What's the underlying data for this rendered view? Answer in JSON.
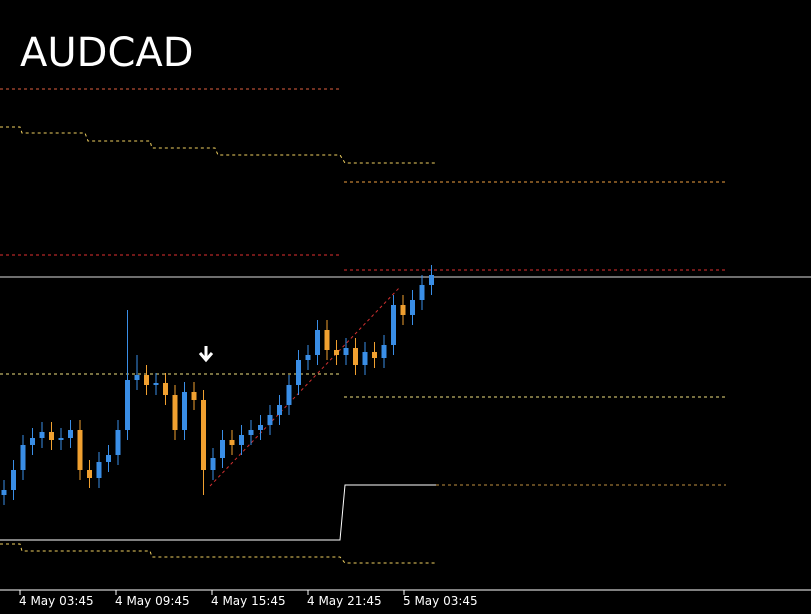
{
  "chart_data": {
    "type": "candlestick",
    "title": "AUDCAD",
    "xticks": [
      "4 May 03:45",
      "4 May 09:45",
      "4 May 15:45",
      "4 May 21:45",
      "5 May 03:45"
    ],
    "ylim": [
      0,
      590
    ],
    "up_color": "#3a8ee6",
    "down_color": "#f0a030",
    "open": [
      95,
      100,
      120,
      145,
      152,
      158,
      150,
      152,
      160,
      120,
      112,
      128,
      135,
      160,
      210,
      215,
      205,
      207,
      195,
      160,
      198,
      190,
      120,
      132,
      150,
      145,
      155,
      160,
      165,
      175,
      185,
      205,
      230,
      235,
      260,
      240,
      235,
      242,
      225,
      238,
      232,
      245,
      285,
      275,
      290,
      305
    ],
    "high": [
      110,
      130,
      155,
      162,
      168,
      168,
      162,
      170,
      170,
      130,
      138,
      145,
      170,
      280,
      235,
      225,
      217,
      217,
      205,
      208,
      208,
      200,
      142,
      160,
      160,
      165,
      170,
      175,
      185,
      195,
      215,
      240,
      245,
      270,
      270,
      250,
      252,
      252,
      248,
      248,
      255,
      295,
      295,
      300,
      315,
      325
    ],
    "low": [
      85,
      90,
      110,
      135,
      142,
      140,
      140,
      142,
      110,
      102,
      102,
      118,
      125,
      150,
      200,
      195,
      195,
      185,
      150,
      150,
      180,
      95,
      110,
      122,
      135,
      135,
      145,
      150,
      155,
      165,
      175,
      195,
      220,
      225,
      230,
      225,
      225,
      215,
      215,
      222,
      222,
      235,
      265,
      265,
      280,
      295
    ],
    "close": [
      100,
      120,
      145,
      152,
      158,
      150,
      152,
      160,
      120,
      112,
      128,
      135,
      160,
      210,
      215,
      205,
      207,
      195,
      160,
      198,
      190,
      120,
      132,
      150,
      145,
      155,
      160,
      165,
      175,
      185,
      205,
      230,
      235,
      260,
      240,
      235,
      242,
      225,
      238,
      232,
      245,
      285,
      275,
      290,
      305,
      315
    ]
  }
}
